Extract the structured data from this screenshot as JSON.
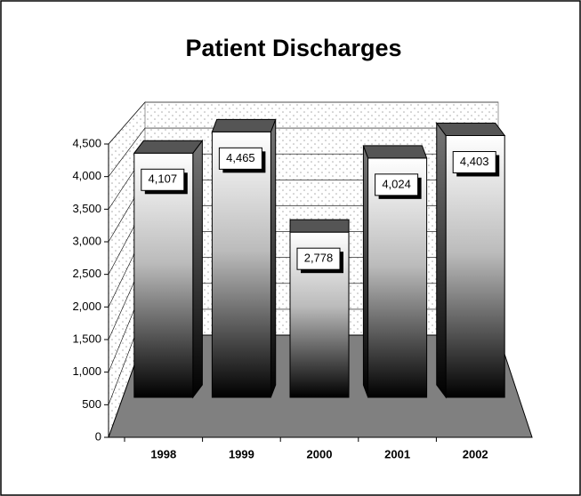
{
  "chart_data": {
    "type": "bar3d",
    "title": "Patient Discharges",
    "categories": [
      "1998",
      "1999",
      "2000",
      "2001",
      "2002"
    ],
    "values": [
      4107,
      4465,
      2778,
      4024,
      4403
    ],
    "value_labels": [
      "4,107",
      "4,465",
      "2,778",
      "4,024",
      "4,403"
    ],
    "ylim": [
      0,
      4500
    ],
    "yticks": [
      0,
      500,
      {
        "value": 1000,
        "label": "1,000"
      },
      {
        "value": 1500,
        "label": "1,500"
      },
      {
        "value": 2000,
        "label": "2,000"
      },
      {
        "value": 2500,
        "label": "2,500"
      },
      {
        "value": 3000,
        "label": "3,000"
      },
      {
        "value": 3500,
        "label": "3,500"
      },
      {
        "value": 4000,
        "label": "4,000"
      },
      {
        "value": 4500,
        "label": "4,500"
      }
    ],
    "grid": true
  }
}
